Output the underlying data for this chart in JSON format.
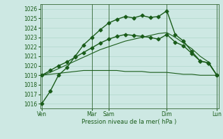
{
  "title": "",
  "xlabel": "Pression niveau de la mer( hPa )",
  "background_color": "#cde8e3",
  "grid_color": "#b0d8cc",
  "line_color": "#1a5c1a",
  "vline_color": "#336633",
  "ylim": [
    1015.5,
    1026.5
  ],
  "yticks": [
    1016,
    1017,
    1018,
    1019,
    1020,
    1021,
    1022,
    1023,
    1024,
    1025,
    1026
  ],
  "xlim": [
    -0.2,
    21.2
  ],
  "xtick_positions": [
    0,
    6,
    8,
    15,
    21
  ],
  "xtick_labels": [
    "Ven",
    "Mar",
    "Sam",
    "Dim",
    "Lun"
  ],
  "vlines": [
    0,
    6,
    8,
    15,
    21
  ],
  "line1_x": [
    0,
    1,
    2,
    3,
    4,
    5,
    6,
    7,
    8,
    9,
    10,
    11,
    12,
    13,
    14,
    15,
    16,
    17,
    18,
    19,
    20,
    21
  ],
  "line1_y": [
    1016.0,
    1017.3,
    1019.0,
    1019.8,
    1021.0,
    1022.2,
    1023.0,
    1023.8,
    1024.5,
    1024.9,
    1025.2,
    1025.05,
    1025.3,
    1025.1,
    1025.2,
    1025.8,
    1023.3,
    1022.6,
    1021.5,
    1020.5,
    1020.3,
    1019.0
  ],
  "line2_x": [
    0,
    1,
    2,
    3,
    4,
    5,
    6,
    7,
    8,
    9,
    10,
    11,
    12,
    13,
    14,
    15,
    16,
    17,
    18,
    19,
    20,
    21
  ],
  "line2_y": [
    1019.0,
    1019.5,
    1020.0,
    1020.4,
    1020.9,
    1021.4,
    1021.9,
    1022.4,
    1022.8,
    1023.1,
    1023.3,
    1023.2,
    1023.1,
    1023.0,
    1022.8,
    1023.3,
    1022.5,
    1022.1,
    1021.3,
    1020.5,
    1020.3,
    1019.0
  ],
  "line3_x": [
    0,
    1,
    2,
    3,
    4,
    5,
    6,
    7,
    8,
    9,
    10,
    11,
    12,
    13,
    14,
    15,
    16,
    17,
    18,
    19,
    20,
    21
  ],
  "line3_y": [
    1019.0,
    1019.1,
    1019.2,
    1019.3,
    1019.4,
    1019.5,
    1019.5,
    1019.5,
    1019.5,
    1019.5,
    1019.4,
    1019.4,
    1019.4,
    1019.3,
    1019.3,
    1019.3,
    1019.2,
    1019.1,
    1019.1,
    1019.0,
    1019.0,
    1019.0
  ],
  "line4_x": [
    0,
    1,
    2,
    3,
    4,
    5,
    6,
    7,
    8,
    9,
    10,
    11,
    12,
    13,
    14,
    15,
    16,
    17,
    18,
    19,
    20,
    21
  ],
  "line4_y": [
    1019.0,
    1019.3,
    1019.7,
    1020.1,
    1020.5,
    1020.9,
    1021.3,
    1021.7,
    1022.0,
    1022.3,
    1022.6,
    1022.8,
    1023.0,
    1023.2,
    1023.4,
    1023.5,
    1023.0,
    1022.4,
    1021.8,
    1021.0,
    1020.4,
    1019.0
  ]
}
